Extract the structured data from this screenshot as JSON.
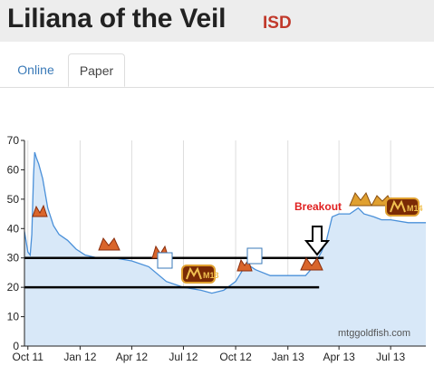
{
  "header": {
    "title": "Liliana of the Veil",
    "set_code": "ISD"
  },
  "tabs": [
    {
      "label": "Online",
      "active": false
    },
    {
      "label": "Paper",
      "active": true
    }
  ],
  "colors": {
    "accent": "#3a7ab8",
    "set_code": "#c1392b",
    "line": "#4a90d9",
    "area": "#d8e8f8",
    "annotation": "#e02020"
  },
  "chart_data": {
    "type": "area",
    "title": "",
    "xlabel": "",
    "ylabel": "",
    "ylim": [
      0,
      70
    ],
    "yticks": [
      0,
      10,
      20,
      30,
      40,
      50,
      60,
      70
    ],
    "xlim": [
      "2011-09-25",
      "2013-09-01"
    ],
    "xticks": [
      "Oct 11",
      "Jan 12",
      "Apr 12",
      "Jul 12",
      "Oct 12",
      "Jan 13",
      "Apr 13",
      "Jul 13"
    ],
    "grid": "vertical",
    "series": [
      {
        "values": [
          [
            "2011-09-25",
            39
          ],
          [
            "2011-10-01",
            32
          ],
          [
            "2011-10-05",
            31
          ],
          [
            "2011-10-08",
            38
          ],
          [
            "2011-10-11",
            58
          ],
          [
            "2011-10-13",
            66
          ],
          [
            "2011-10-16",
            64
          ],
          [
            "2011-10-20",
            62
          ],
          [
            "2011-10-27",
            57
          ],
          [
            "2011-11-05",
            47
          ],
          [
            "2011-11-15",
            41
          ],
          [
            "2011-11-25",
            38
          ],
          [
            "2011-12-10",
            36
          ],
          [
            "2011-12-25",
            33
          ],
          [
            "2012-01-10",
            31
          ],
          [
            "2012-02-01",
            30
          ],
          [
            "2012-03-01",
            30
          ],
          [
            "2012-04-01",
            29
          ],
          [
            "2012-05-01",
            27
          ],
          [
            "2012-06-01",
            22
          ],
          [
            "2012-07-01",
            20
          ],
          [
            "2012-08-01",
            19
          ],
          [
            "2012-08-20",
            18
          ],
          [
            "2012-09-10",
            19
          ],
          [
            "2012-10-01",
            22
          ],
          [
            "2012-10-20",
            28
          ],
          [
            "2012-11-05",
            26
          ],
          [
            "2012-12-01",
            24
          ],
          [
            "2013-01-01",
            24
          ],
          [
            "2013-02-01",
            24
          ],
          [
            "2013-02-15",
            27
          ],
          [
            "2013-03-01",
            32
          ],
          [
            "2013-03-10",
            36
          ],
          [
            "2013-03-20",
            44
          ],
          [
            "2013-04-01",
            45
          ],
          [
            "2013-04-20",
            45
          ],
          [
            "2013-05-05",
            47
          ],
          [
            "2013-05-15",
            45
          ],
          [
            "2013-06-01",
            44
          ],
          [
            "2013-06-15",
            43
          ],
          [
            "2013-07-01",
            43
          ],
          [
            "2013-08-01",
            42
          ],
          [
            "2013-09-01",
            42
          ]
        ]
      }
    ],
    "annotations": {
      "horizontal_lines": [
        30,
        20
      ],
      "breakout_label": "Breakout",
      "watermark": "mtggoldfish.com",
      "set_symbols": [
        "M13",
        "M14"
      ]
    }
  }
}
